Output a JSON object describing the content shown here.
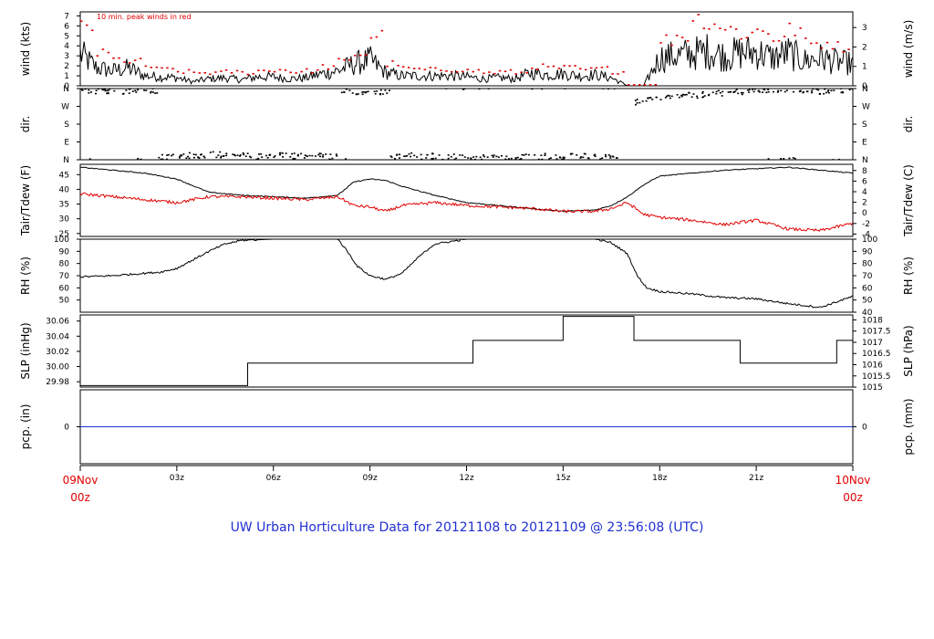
{
  "title": "UW Urban Horticulture Data for 20121108  to  20121109 @ 23:56:08  (UTC)",
  "colors": {
    "black": "#000000",
    "red": "#e00000",
    "blue": "#1f2fd0"
  },
  "time_axis": {
    "range_hours": [
      0,
      24
    ],
    "ticks": [
      {
        "hour": 0,
        "label": "09Nov",
        "label2": "00z",
        "style": "major"
      },
      {
        "hour": 3,
        "label": "03z",
        "style": "minor"
      },
      {
        "hour": 6,
        "label": "06z",
        "style": "minor"
      },
      {
        "hour": 9,
        "label": "09z",
        "style": "minor"
      },
      {
        "hour": 12,
        "label": "12z",
        "style": "minor"
      },
      {
        "hour": 15,
        "label": "15z",
        "style": "minor"
      },
      {
        "hour": 18,
        "label": "18z",
        "style": "minor"
      },
      {
        "hour": 21,
        "label": "21z",
        "style": "minor"
      },
      {
        "hour": 24,
        "label": "10Nov",
        "label2": "00z",
        "style": "major"
      }
    ]
  },
  "chart_data": [
    {
      "type": "line",
      "panel": "wind",
      "ylabel_left": "wind (kts)",
      "ylabel_right": "wind (m/s)",
      "annotation": "10 min. peak winds in red",
      "ylim": [
        0,
        7.4
      ],
      "yticks_left": [
        0,
        1,
        2,
        3,
        4,
        5,
        6,
        7
      ],
      "yticks_right": [
        0,
        1,
        2,
        3
      ],
      "series": [
        {
          "color": "#000000",
          "style": "line",
          "x": [
            0,
            0.5,
            1,
            1.5,
            2,
            2.5,
            3,
            3.5,
            4,
            4.5,
            5,
            5.5,
            6,
            6.5,
            7,
            7.5,
            8,
            8.5,
            9,
            9.5,
            10,
            10.5,
            11,
            11.5,
            12,
            12.5,
            13,
            13.5,
            14,
            14.5,
            15,
            15.5,
            16,
            16.5,
            17,
            17.5,
            18,
            18.5,
            19,
            19.5,
            20,
            20.5,
            21,
            21.5,
            22,
            22.5,
            23,
            23.5,
            24
          ],
          "y": [
            3.2,
            1.8,
            1.5,
            1.8,
            1.0,
            0.9,
            0.8,
            0.4,
            0.7,
            0.8,
            0.6,
            0.9,
            0.9,
            0.7,
            0.8,
            1.2,
            1.5,
            2.2,
            2.6,
            1.3,
            1.0,
            1.0,
            1.0,
            1.0,
            0.9,
            0.7,
            0.8,
            0.7,
            1.3,
            1.1,
            1.2,
            1.0,
            1.1,
            0.8,
            0.0,
            0.0,
            2.8,
            3.0,
            3.2,
            3.5,
            3.0,
            3.3,
            3.4,
            2.8,
            3.3,
            2.5,
            2.8,
            2.4,
            2.2
          ]
        },
        {
          "color": "#e00000",
          "style": "dots",
          "x": [
            0,
            0.5,
            1,
            1.5,
            2,
            2.5,
            3,
            3.5,
            4,
            4.5,
            5,
            5.5,
            6,
            6.5,
            7,
            7.5,
            8,
            8.5,
            9,
            9.5,
            10,
            10.5,
            11,
            11.5,
            12,
            12.5,
            13,
            13.5,
            14,
            14.5,
            15,
            15.5,
            16,
            16.5,
            17,
            17.5,
            18,
            18.5,
            19,
            19.5,
            20,
            20.5,
            21,
            21.5,
            22,
            22.5,
            23,
            23.5,
            24
          ],
          "y": [
            5.8,
            3.2,
            2.6,
            2.4,
            1.9,
            1.6,
            1.4,
            1.3,
            1.3,
            1.4,
            1.3,
            1.5,
            1.6,
            1.4,
            1.5,
            1.9,
            2.4,
            3.2,
            5.0,
            2.2,
            1.7,
            1.6,
            1.6,
            1.6,
            1.5,
            1.3,
            1.4,
            1.3,
            1.9,
            1.8,
            1.8,
            1.6,
            1.7,
            1.4,
            0.1,
            0.1,
            4.6,
            5.0,
            6.7,
            6.2,
            5.6,
            5.2,
            5.5,
            4.8,
            5.6,
            4.2,
            4.3,
            3.9,
            4.0
          ]
        }
      ]
    },
    {
      "type": "scatter",
      "panel": "direction",
      "ylabel_left": "dir.",
      "ylabel_right": "dir.",
      "ylim": [
        0,
        360
      ],
      "ytick_labels": [
        "N",
        "E",
        "S",
        "W",
        "N"
      ],
      "series": [
        {
          "color": "#000000",
          "x": [
            0.2,
            0.6,
            1.0,
            1.4,
            1.8,
            2.2,
            2.6,
            3.0,
            3.4,
            3.8,
            4.2,
            4.6,
            5.0,
            5.4,
            5.8,
            6.2,
            6.6,
            7.0,
            7.4,
            7.8,
            8.2,
            8.6,
            9.0,
            9.4,
            9.8,
            10.2,
            10.6,
            11.0,
            11.4,
            11.8,
            12.2,
            12.6,
            13.0,
            13.4,
            13.8,
            14.2,
            14.6,
            15.0,
            15.4,
            15.8,
            16.2,
            16.6,
            17.0,
            17.4,
            17.8,
            18.2,
            18.6,
            19.0,
            19.4,
            19.8,
            20.2,
            20.6,
            21.0,
            21.4,
            21.8,
            22.2,
            22.6,
            23.0,
            23.4,
            23.8
          ],
          "y": [
            352,
            348,
            350,
            346,
            352,
            345,
            12,
            18,
            22,
            20,
            25,
            18,
            20,
            15,
            22,
            28,
            20,
            18,
            22,
            15,
            352,
            345,
            340,
            338,
            15,
            20,
            12,
            18,
            14,
            10,
            8,
            12,
            10,
            6,
            15,
            12,
            18,
            14,
            20,
            16,
            10,
            12,
            8,
            290,
            305,
            315,
            320,
            325,
            330,
            335,
            340,
            345,
            348,
            350,
            352,
            355,
            350,
            345,
            348,
            350
          ]
        }
      ]
    },
    {
      "type": "line",
      "panel": "temperature",
      "ylabel_left": "Tair/Tdew (F)",
      "ylabel_right": "Tair/Tdew (C)",
      "ylim": [
        24,
        48.5
      ],
      "yticks_left": [
        25,
        30,
        35,
        40,
        45
      ],
      "yticks_right": [
        -4,
        -2,
        0,
        2,
        4,
        6,
        8
      ],
      "series": [
        {
          "color": "#000000",
          "x": [
            0,
            1,
            2,
            3,
            4,
            5,
            6,
            7,
            8,
            8.5,
            9,
            9.5,
            10,
            11,
            12,
            13,
            14,
            15,
            16,
            16.5,
            17,
            17.5,
            18,
            19,
            20,
            21,
            22,
            23,
            24
          ],
          "y": [
            47.5,
            46.5,
            45.5,
            43.5,
            39.0,
            38.0,
            37.5,
            37.0,
            38.0,
            42.5,
            43.5,
            43.0,
            41.0,
            38.0,
            35.5,
            34.5,
            33.5,
            32.5,
            33.0,
            34.5,
            37.5,
            41.5,
            44.5,
            45.5,
            46.5,
            47.0,
            47.5,
            46.5,
            45.5
          ]
        },
        {
          "color": "#e00000",
          "x": [
            0,
            1,
            2,
            3,
            4,
            5,
            6,
            7,
            8,
            8.5,
            9,
            9.5,
            10,
            11,
            12,
            13,
            14,
            15,
            16,
            16.5,
            17,
            17.5,
            18,
            19,
            20,
            21,
            22,
            23,
            24
          ],
          "y": [
            38.5,
            37.5,
            36.5,
            35.5,
            37.5,
            37.5,
            37.0,
            36.5,
            37.5,
            34.5,
            34.0,
            32.5,
            34.5,
            35.5,
            34.5,
            34.0,
            33.5,
            32.5,
            32.5,
            33.5,
            35.5,
            31.5,
            30.5,
            29.5,
            28.0,
            29.5,
            26.5,
            26.0,
            28.5
          ]
        }
      ]
    },
    {
      "type": "line",
      "panel": "humidity",
      "ylabel_left": "RH (%)",
      "ylabel_right": "RH (%)",
      "ylim": [
        40,
        100
      ],
      "yticks_left": [
        50,
        60,
        70,
        80,
        90,
        100
      ],
      "yticks_right": [
        40,
        50,
        60,
        70,
        80,
        90,
        100
      ],
      "series": [
        {
          "color": "#000000",
          "x": [
            0,
            1,
            2,
            2.5,
            3,
            3.5,
            4,
            4.5,
            5,
            6,
            7,
            8,
            8.3,
            8.6,
            9,
            9.5,
            10,
            10.5,
            11,
            12,
            13,
            14,
            15,
            16,
            16.5,
            17,
            17.3,
            17.6,
            18,
            19,
            20,
            21,
            22,
            23,
            24
          ],
          "y": [
            69,
            70,
            72,
            73,
            76,
            83,
            90,
            96,
            99,
            100,
            100,
            100,
            90,
            78,
            70,
            67,
            72,
            85,
            96,
            100,
            100,
            100,
            100,
            100,
            97,
            88,
            70,
            60,
            57,
            55,
            52,
            51,
            47,
            44,
            53
          ]
        }
      ]
    },
    {
      "type": "line",
      "panel": "pressure",
      "ylabel_left": "SLP (inHg)",
      "ylabel_right": "SLP (hPa)",
      "ylim": [
        29.973,
        30.068
      ],
      "yticks_left": [
        29.98,
        30.0,
        30.02,
        30.04,
        30.06
      ],
      "yticks_left_labels": [
        "29.98",
        "30.00",
        "30.02",
        "30.04",
        "30.06"
      ],
      "yticks_right": [
        1015,
        1015.5,
        1016,
        1016.5,
        1017,
        1017.5,
        1018
      ],
      "series": [
        {
          "color": "#000000",
          "step": true,
          "x": [
            0,
            5.2,
            12.2,
            15.0,
            17.2,
            20.5,
            23.5,
            24
          ],
          "y": [
            29.975,
            30.0045,
            30.0345,
            30.066,
            30.0345,
            30.0045,
            30.0345,
            30.0345
          ]
        }
      ]
    },
    {
      "type": "line",
      "panel": "precipitation",
      "ylabel_left": "pcp. (in)",
      "ylabel_right": "pcp. (mm)",
      "ylim": [
        -1,
        1
      ],
      "yticks_left": [
        0
      ],
      "yticks_right": [
        0
      ],
      "series": [
        {
          "color": "#1f2fd0",
          "x": [
            0,
            24
          ],
          "y": [
            0,
            0
          ]
        }
      ]
    }
  ]
}
